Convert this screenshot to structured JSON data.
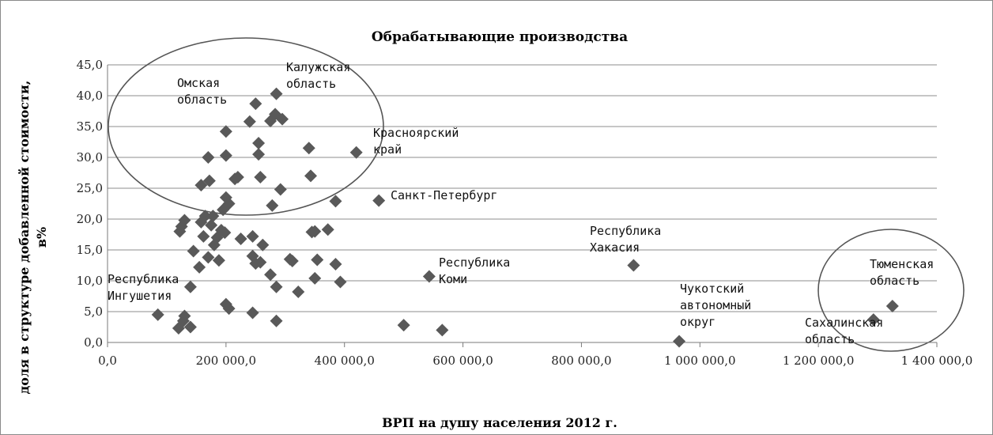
{
  "chart_data": {
    "type": "scatter",
    "title": "Обрабатывающие производства",
    "xlabel": "ВРП на душу населения 2012 г.",
    "ylabel_lines": [
      "доля в структуре добавленной стоимости,",
      "в%"
    ],
    "xlim": [
      0,
      1400000
    ],
    "ylim": [
      0,
      45
    ],
    "x_ticks": [
      0,
      200000,
      400000,
      600000,
      800000,
      1000000,
      1200000,
      1400000
    ],
    "x_tick_labels": [
      "0,0",
      "200 000,0",
      "400 000,0",
      "600 000,0",
      "800 000,0",
      "1 000 000,0",
      "1 200 000,0",
      "1 400 000,0"
    ],
    "y_ticks": [
      0,
      5,
      10,
      15,
      20,
      25,
      30,
      35,
      40,
      45
    ],
    "y_tick_labels": [
      "0,0",
      "5,0",
      "10,0",
      "15,0",
      "20,0",
      "25,0",
      "30,0",
      "35,0",
      "40,0",
      "45,0"
    ],
    "grid": "horizontal",
    "marker": "diamond",
    "marker_color": "#595959",
    "points": [
      {
        "x": 85000,
        "y": 4.5
      },
      {
        "x": 120000,
        "y": 2.3
      },
      {
        "x": 128000,
        "y": 3.5
      },
      {
        "x": 130000,
        "y": 4.3
      },
      {
        "x": 140000,
        "y": 2.5
      },
      {
        "x": 140000,
        "y": 9.0
      },
      {
        "x": 122000,
        "y": 18.0
      },
      {
        "x": 125000,
        "y": 18.8
      },
      {
        "x": 130000,
        "y": 19.8
      },
      {
        "x": 145000,
        "y": 14.8
      },
      {
        "x": 155000,
        "y": 12.2
      },
      {
        "x": 158000,
        "y": 19.5
      },
      {
        "x": 162000,
        "y": 17.2
      },
      {
        "x": 165000,
        "y": 20.5
      },
      {
        "x": 170000,
        "y": 13.8
      },
      {
        "x": 175000,
        "y": 19.0
      },
      {
        "x": 178000,
        "y": 20.5
      },
      {
        "x": 180000,
        "y": 15.8
      },
      {
        "x": 185000,
        "y": 17.0
      },
      {
        "x": 188000,
        "y": 13.3
      },
      {
        "x": 192000,
        "y": 18.2
      },
      {
        "x": 195000,
        "y": 21.5
      },
      {
        "x": 198000,
        "y": 17.8
      },
      {
        "x": 200000,
        "y": 23.5
      },
      {
        "x": 205000,
        "y": 22.5
      },
      {
        "x": 158000,
        "y": 25.5
      },
      {
        "x": 172000,
        "y": 26.2
      },
      {
        "x": 170000,
        "y": 30.0
      },
      {
        "x": 200000,
        "y": 30.3
      },
      {
        "x": 200000,
        "y": 34.2
      },
      {
        "x": 215000,
        "y": 26.5
      },
      {
        "x": 220000,
        "y": 26.8
      },
      {
        "x": 225000,
        "y": 16.8
      },
      {
        "x": 200000,
        "y": 6.2
      },
      {
        "x": 205000,
        "y": 5.5
      },
      {
        "x": 240000,
        "y": 35.8
      },
      {
        "x": 250000,
        "y": 38.7
      },
      {
        "x": 255000,
        "y": 32.3
      },
      {
        "x": 255000,
        "y": 30.5
      },
      {
        "x": 258000,
        "y": 26.8
      },
      {
        "x": 245000,
        "y": 17.2
      },
      {
        "x": 245000,
        "y": 14.0
      },
      {
        "x": 250000,
        "y": 12.8
      },
      {
        "x": 258000,
        "y": 13.0
      },
      {
        "x": 262000,
        "y": 15.8
      },
      {
        "x": 245000,
        "y": 4.8
      },
      {
        "x": 275000,
        "y": 11.0
      },
      {
        "x": 278000,
        "y": 22.2
      },
      {
        "x": 285000,
        "y": 9.0
      },
      {
        "x": 285000,
        "y": 3.5
      },
      {
        "x": 275000,
        "y": 35.9
      },
      {
        "x": 283000,
        "y": 37.0
      },
      {
        "x": 285000,
        "y": 40.3
      },
      {
        "x": 295000,
        "y": 36.2
      },
      {
        "x": 292000,
        "y": 24.8
      },
      {
        "x": 308000,
        "y": 13.5
      },
      {
        "x": 312000,
        "y": 13.2
      },
      {
        "x": 322000,
        "y": 8.2
      },
      {
        "x": 340000,
        "y": 31.5
      },
      {
        "x": 343000,
        "y": 27.0
      },
      {
        "x": 345000,
        "y": 17.9
      },
      {
        "x": 350000,
        "y": 18.0
      },
      {
        "x": 350000,
        "y": 10.4
      },
      {
        "x": 354000,
        "y": 13.4
      },
      {
        "x": 372000,
        "y": 18.3
      },
      {
        "x": 385000,
        "y": 12.7
      },
      {
        "x": 385000,
        "y": 22.9
      },
      {
        "x": 393000,
        "y": 9.8
      },
      {
        "x": 420000,
        "y": 30.8
      },
      {
        "x": 458000,
        "y": 23.0
      },
      {
        "x": 500000,
        "y": 2.8
      },
      {
        "x": 543000,
        "y": 10.7
      },
      {
        "x": 565000,
        "y": 2.0
      },
      {
        "x": 888000,
        "y": 12.5
      },
      {
        "x": 965000,
        "y": 0.2
      },
      {
        "x": 1293000,
        "y": 3.7
      },
      {
        "x": 1325000,
        "y": 5.9
      }
    ],
    "annotations": [
      {
        "lines": [
          "Калужская",
          "область"
        ]
      },
      {
        "lines": [
          "Омская",
          "область"
        ]
      },
      {
        "lines": [
          "Красноярский",
          "край"
        ]
      },
      {
        "lines": [
          "Санкт-Петербург"
        ]
      },
      {
        "lines": [
          "Республика",
          "Хакасия"
        ]
      },
      {
        "lines": [
          "Республика",
          "Коми"
        ]
      },
      {
        "lines": [
          "Республика",
          "Ингушетия"
        ]
      },
      {
        "lines": [
          "Чукотский",
          "автономный",
          "округ"
        ]
      },
      {
        "lines": [
          "Тюменская",
          "область"
        ]
      },
      {
        "lines": [
          "Сахалинская",
          "область"
        ]
      }
    ]
  }
}
